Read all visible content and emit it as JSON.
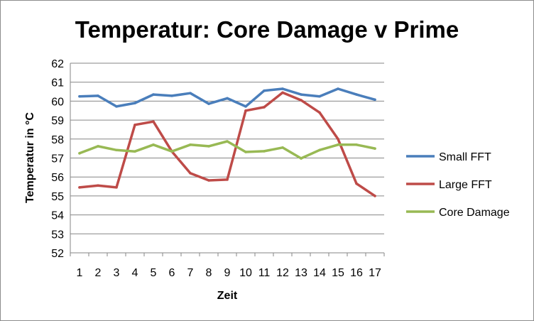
{
  "chart_data": {
    "type": "line",
    "title": "Temperatur: Core Damage v Prime",
    "xlabel": "Zeit",
    "ylabel": "Temperatur in °C",
    "categories": [
      "1",
      "2",
      "3",
      "4",
      "5",
      "6",
      "7",
      "8",
      "9",
      "10",
      "11",
      "12",
      "13",
      "14",
      "15",
      "16",
      "17"
    ],
    "ylim": [
      52,
      62
    ],
    "yticks": [
      "52",
      "53",
      "54",
      "55",
      "56",
      "57",
      "58",
      "59",
      "60",
      "61",
      "62"
    ],
    "grid": true,
    "legend_position": "right",
    "series": [
      {
        "name": "Small FFT",
        "color": "#4a7ebb",
        "values": [
          60.25,
          60.28,
          59.72,
          59.9,
          60.35,
          60.28,
          60.42,
          59.86,
          60.15,
          59.72,
          60.55,
          60.65,
          60.35,
          60.25,
          60.65,
          60.35,
          60.08
        ]
      },
      {
        "name": "Large FFT",
        "color": "#be4b48",
        "values": [
          55.45,
          55.55,
          55.45,
          58.75,
          58.92,
          57.35,
          56.2,
          55.82,
          55.86,
          59.5,
          59.68,
          60.45,
          60.05,
          59.4,
          58.0,
          55.65,
          55.0
        ]
      },
      {
        "name": "Core Damage",
        "color": "#98b954",
        "values": [
          57.25,
          57.62,
          57.42,
          57.35,
          57.7,
          57.35,
          57.7,
          57.62,
          57.88,
          57.32,
          57.36,
          57.55,
          56.98,
          57.42,
          57.7,
          57.7,
          57.5
        ]
      }
    ]
  }
}
